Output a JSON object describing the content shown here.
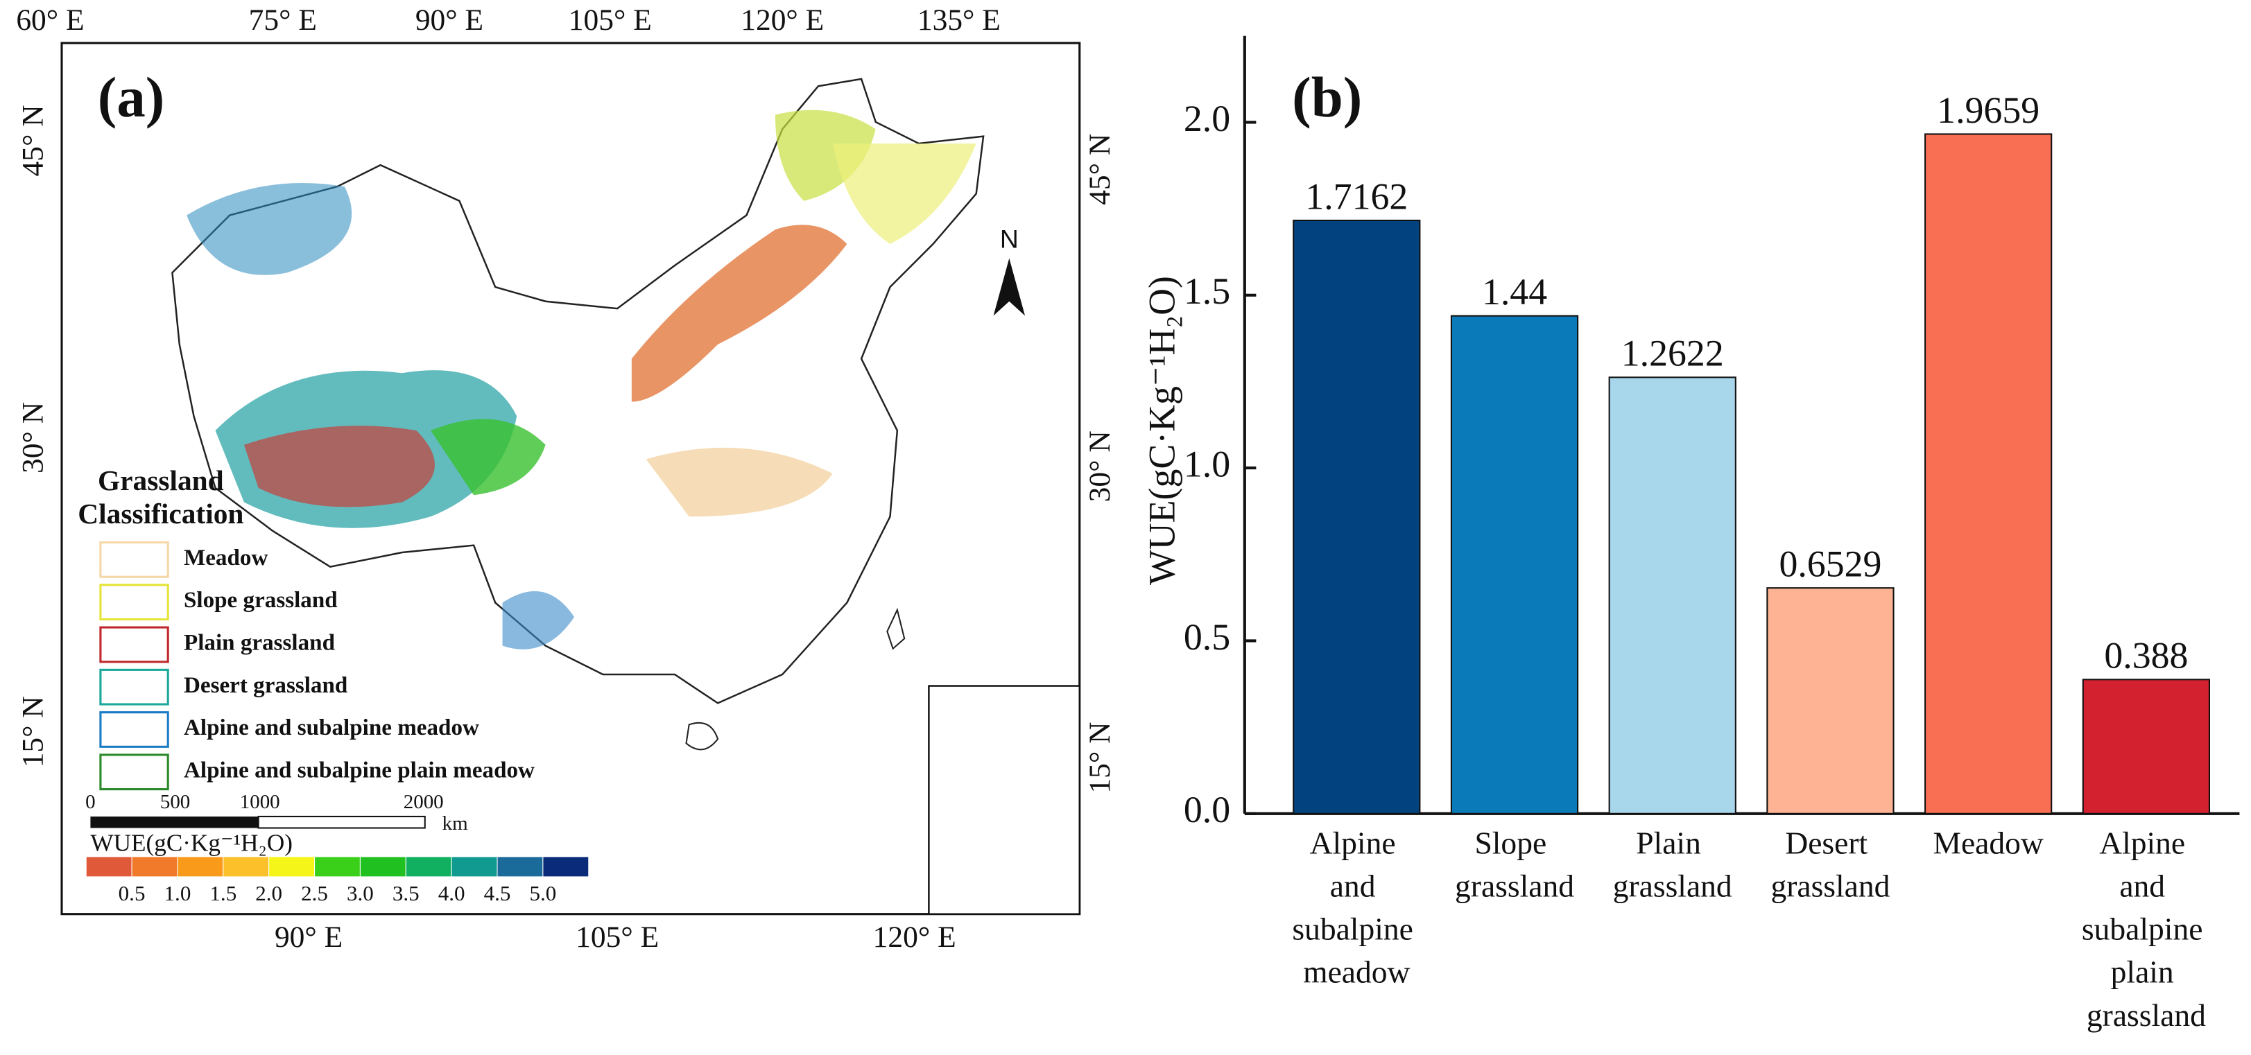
{
  "map": {
    "panel_label": "(a)",
    "top_labels": [
      "60° E",
      "75° E",
      "90° E",
      "105° E",
      "120° E",
      "135° E"
    ],
    "bottom_labels": [
      "90° E",
      "105° E",
      "120° E"
    ],
    "left_labels": [
      "45° N",
      "30° N",
      "15° N"
    ],
    "right_labels": [
      "45° N",
      "30° N",
      "15° N"
    ],
    "north": "N",
    "legend": {
      "title": [
        "Grassland",
        "Classification"
      ],
      "items": [
        {
          "label": "Meadow",
          "color": "#f6d7a7"
        },
        {
          "label": "Slope grassland",
          "color": "#e6e43a"
        },
        {
          "label": "Plain grassland",
          "color": "#c0282e"
        },
        {
          "label": "Desert grassland",
          "color": "#1aa89a"
        },
        {
          "label": "Alpine and subalpine meadow",
          "color": "#1a7cc4"
        },
        {
          "label": "Alpine and subalpine plain meadow",
          "color": "#2a8a2a"
        }
      ]
    },
    "scale_bar": {
      "labels": [
        "0",
        "500",
        "1000",
        "2000"
      ],
      "unit": "km"
    },
    "colorbar": {
      "title": "WUE(gC·Kg⁻¹H₂O)",
      "labels": [
        "0.5",
        "1.0",
        "1.5",
        "2.0",
        "2.5",
        "3.0",
        "3.5",
        "4.0",
        "4.5",
        "5.0"
      ],
      "colors": [
        "#e05a3a",
        "#f07a2a",
        "#f99a1a",
        "#fbc02a",
        "#f5f51a",
        "#3ad01a",
        "#20c020",
        "#10b060",
        "#109a90",
        "#1a6a9a",
        "#0a2a7a"
      ]
    }
  },
  "chart_data": {
    "type": "bar",
    "panel_label": "(b)",
    "y_label": "WUE(gC·Kg⁻¹H₂O)",
    "categories": [
      "Alpine and subalpine meadow",
      "Slope grassland",
      "Plain grassland",
      "Desert grassland",
      "Meadow",
      "Alpine and subalpine plain grassland"
    ],
    "values": [
      1.7162,
      1.44,
      1.2622,
      0.6529,
      1.9659,
      0.388
    ],
    "colors": [
      "#02437f",
      "#0a7ab8",
      "#a8d6ea",
      "#fdb394",
      "#f96f54",
      "#d42130"
    ],
    "ylim": [
      0,
      2.25
    ],
    "yticks": [
      {
        "value": 0,
        "label": "0.0"
      },
      0.5,
      {
        "value": 1,
        "label": "1.0"
      },
      1.5,
      {
        "value": 2,
        "label": "2.0"
      }
    ]
  }
}
